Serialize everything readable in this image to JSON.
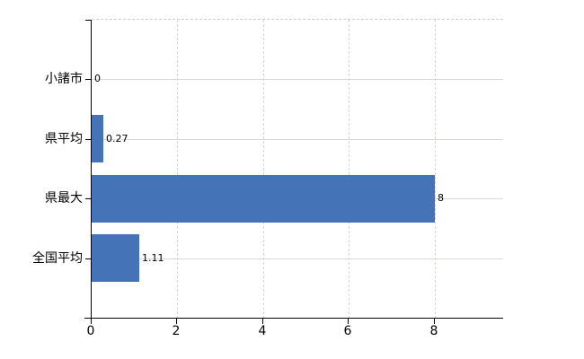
{
  "chart_data": {
    "type": "bar",
    "orientation": "horizontal",
    "title": "",
    "xlabel": "",
    "ylabel": "",
    "categories": [
      "小諸市",
      "県平均",
      "県最大",
      "全国平均"
    ],
    "values": [
      0,
      0.27,
      8,
      1.11
    ],
    "value_labels": [
      "0",
      "0.27",
      "8",
      "1.11"
    ],
    "x_ticks": [
      0,
      2,
      4,
      6,
      8
    ],
    "xlim": [
      0,
      9.6
    ],
    "grid": true,
    "legend": false,
    "bar_color": "#4573b7",
    "grid_color": "#d6dad2",
    "axis_color": "#000000",
    "background_color": "#ffffff"
  }
}
